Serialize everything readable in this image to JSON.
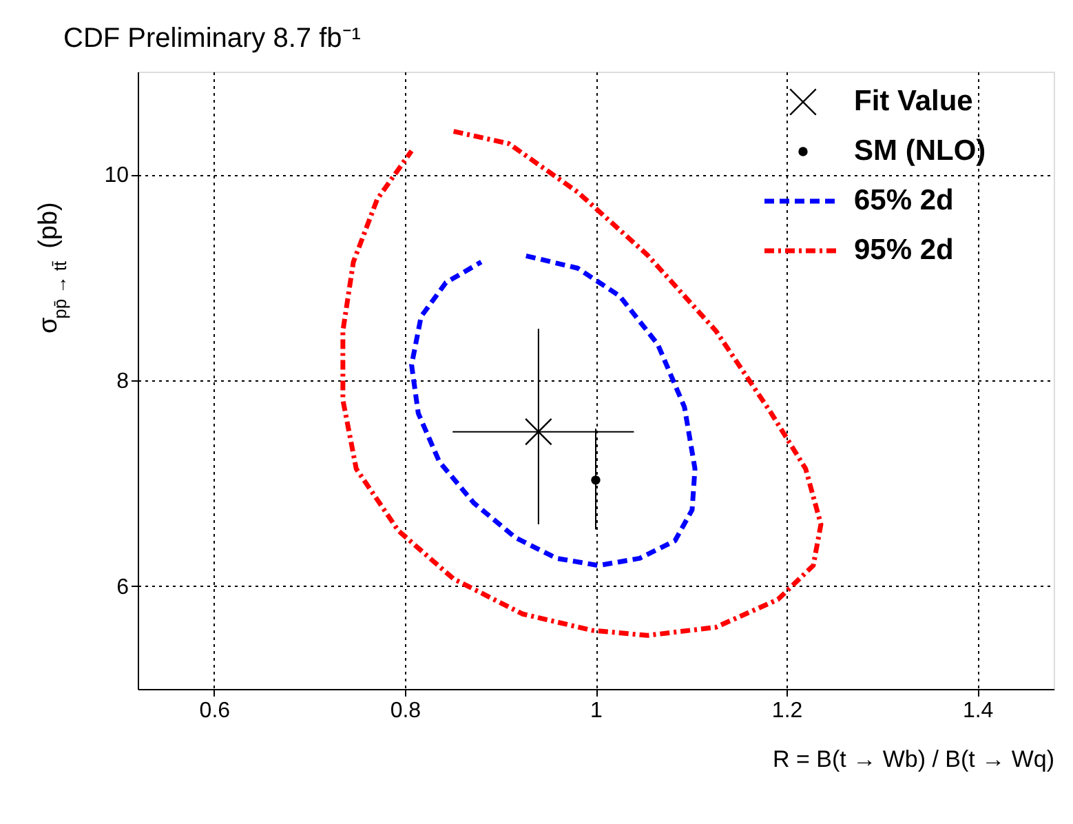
{
  "chart_data": {
    "type": "scatter",
    "title": "CDF Preliminary 8.7 fb⁻¹",
    "xlabel": "R = B(t → Wb) / B(t → Wq)",
    "ylabel": "σ$_{pp̄ → tt̄}$ (pb)",
    "xlim": [
      0.52,
      1.48
    ],
    "ylim": [
      5,
      11
    ],
    "xticks": [
      0.6,
      0.8,
      1,
      1.2,
      1.4
    ],
    "yticks": [
      6,
      8,
      10
    ],
    "grid": true,
    "legend": "top right",
    "series": [
      {
        "name": "Fit Value",
        "marker": "cross",
        "color": "#000000",
        "x": [
          0.94
        ],
        "values": [
          7.5
        ],
        "errors": [
          [
            6.6,
            8.5
          ]
        ],
        "xerrors": [
          [
            0.85,
            1.04
          ]
        ]
      },
      {
        "name": "SM (NLO)",
        "marker": "circle",
        "color": "#000000",
        "x": [
          1.0
        ],
        "values": [
          7.03
        ],
        "errors": [
          [
            6.55,
            7.53
          ]
        ]
      },
      {
        "name": "65% 2d",
        "type": "line",
        "line_style": "dashed",
        "color": "#0000ff",
        "x": [
          0.927,
          0.981,
          1.025,
          1.065,
          1.093,
          1.104,
          1.101,
          1.083,
          1.046,
          1.003,
          0.959,
          0.916,
          0.872,
          0.836,
          0.814,
          0.807,
          0.817,
          0.843,
          0.88
        ],
        "values": [
          9.21,
          9.09,
          8.82,
          8.35,
          7.74,
          7.14,
          6.74,
          6.44,
          6.27,
          6.2,
          6.27,
          6.47,
          6.81,
          7.21,
          7.68,
          8.15,
          8.62,
          8.95,
          9.15
        ]
      },
      {
        "name": "95% 2d",
        "type": "line",
        "line_style": "dotted",
        "color": "#ff0000",
        "x": [
          0.851,
          0.909,
          0.981,
          1.054,
          1.126,
          1.184,
          1.22,
          1.236,
          1.228,
          1.191,
          1.126,
          1.054,
          0.996,
          0.923,
          0.851,
          0.793,
          0.749,
          0.735,
          0.735,
          0.746,
          0.771,
          0.807
        ],
        "values": [
          10.42,
          10.3,
          9.83,
          9.22,
          8.48,
          7.68,
          7.14,
          6.6,
          6.2,
          5.87,
          5.6,
          5.52,
          5.57,
          5.73,
          6.07,
          6.54,
          7.14,
          7.81,
          8.48,
          9.15,
          9.76,
          10.23
        ]
      }
    ]
  }
}
